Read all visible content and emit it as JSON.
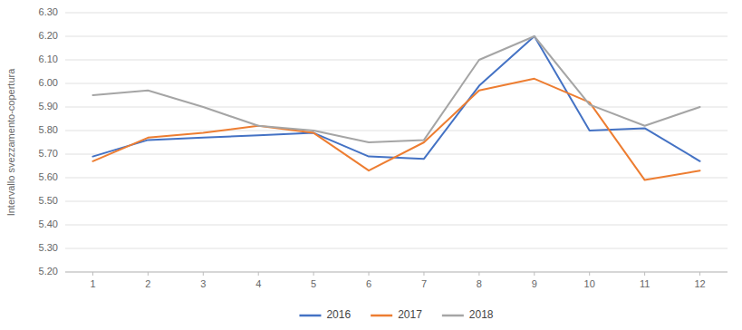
{
  "chart_data": {
    "type": "line",
    "y_label": "Intervallo svezzamento-copertura",
    "x": [
      1,
      2,
      3,
      4,
      5,
      6,
      7,
      8,
      9,
      10,
      11,
      12
    ],
    "xlim": [
      0.5,
      12.5
    ],
    "xticks": [
      1,
      2,
      3,
      4,
      5,
      6,
      7,
      8,
      9,
      10,
      11,
      12
    ],
    "ylim": [
      5.2,
      6.3
    ],
    "yticks": [
      {
        "value": 5.2,
        "label": "5.20"
      },
      {
        "value": 5.3,
        "label": "5.30"
      },
      {
        "value": 5.4,
        "label": "5.40"
      },
      {
        "value": 5.5,
        "label": "5.50"
      },
      {
        "value": 5.6,
        "label": "5.60"
      },
      {
        "value": 5.7,
        "label": "5.70"
      },
      {
        "value": 5.8,
        "label": "5.80"
      },
      {
        "value": 5.9,
        "label": "5.90"
      },
      {
        "value": 6.0,
        "label": "6.00"
      },
      {
        "value": 6.1,
        "label": "6.10"
      },
      {
        "value": 6.2,
        "label": "6.20"
      },
      {
        "value": 6.3,
        "label": "6.30"
      }
    ],
    "grid": true,
    "legend": "bottom",
    "series": [
      {
        "name": "2016",
        "color": "#4472C4",
        "values": [
          5.69,
          5.76,
          5.77,
          5.78,
          5.79,
          5.69,
          5.68,
          5.99,
          6.2,
          5.8,
          5.81,
          5.67
        ]
      },
      {
        "name": "2017",
        "color": "#ED7D31",
        "values": [
          5.67,
          5.77,
          5.79,
          5.82,
          5.79,
          5.63,
          5.75,
          5.97,
          6.02,
          5.92,
          5.59,
          5.63
        ]
      },
      {
        "name": "2018",
        "color": "#A5A5A5",
        "values": [
          5.95,
          5.97,
          5.9,
          5.82,
          5.8,
          5.75,
          5.76,
          6.1,
          6.2,
          5.91,
          5.82,
          5.9
        ]
      }
    ]
  }
}
